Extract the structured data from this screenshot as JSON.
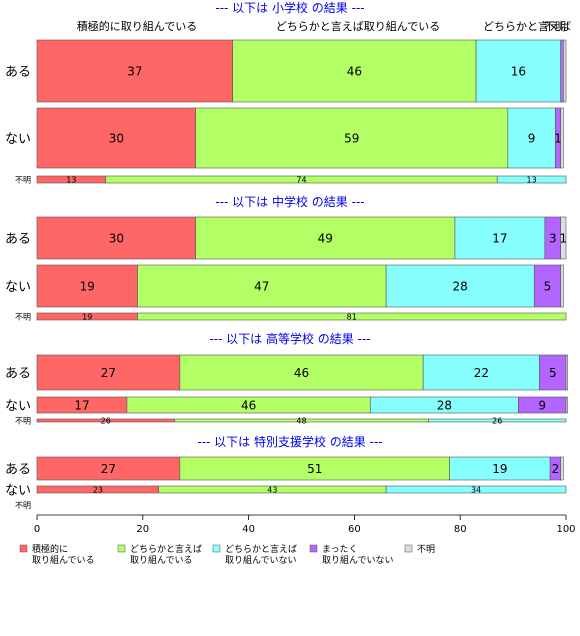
{
  "chart_data": {
    "type": "bar",
    "orientation": "horizontal",
    "stacked": true,
    "xlim": [
      0,
      100
    ],
    "xticks": [
      "0",
      "20",
      "40",
      "60",
      "80",
      "100"
    ],
    "grid": false,
    "legend_position": "bottom-left",
    "top_column_headers": [
      "積極的に取り組んでいる",
      "どちらかと言えば取り組んでいる",
      "どちらかと言えば",
      "不明"
    ],
    "legend": [
      {
        "lines": [
          "積極的に",
          "取り組んでいる"
        ],
        "color": "#FF6666"
      },
      {
        "lines": [
          "どちらかと言えば",
          "取り組んでいる"
        ],
        "color": "#B3FF66"
      },
      {
        "lines": [
          "どちらかと言えば",
          "取り組んでいない"
        ],
        "color": "#88FFFF"
      },
      {
        "lines": [
          "まったく",
          "取り組んでいない"
        ],
        "color": "#B366FF"
      },
      {
        "lines": [
          "不明"
        ],
        "color": "#DDDDDD"
      }
    ],
    "groups": [
      {
        "title": "--- 以下は 小学校 の結果 ---",
        "rows": [
          {
            "label": "ある",
            "values": [
              37,
              46,
              16,
              0.5,
              0.5
            ],
            "labels": [
              "37",
              "46",
              "16",
              "",
              ""
            ]
          },
          {
            "label": "ない",
            "values": [
              30,
              59,
              9,
              1,
              0.5
            ],
            "labels": [
              "30",
              "59",
              "9",
              "1",
              ""
            ]
          },
          {
            "label": "不明",
            "values": [
              13,
              74,
              13,
              0,
              0
            ],
            "labels": [
              "13",
              "74",
              "13",
              "",
              ""
            ]
          }
        ]
      },
      {
        "title": "--- 以下は 中学校 の結果 ---",
        "rows": [
          {
            "label": "ある",
            "values": [
              30,
              49,
              17,
              3,
              1
            ],
            "labels": [
              "30",
              "49",
              "17",
              "3",
              "1"
            ]
          },
          {
            "label": "ない",
            "values": [
              19,
              47,
              28,
              5,
              0.5
            ],
            "labels": [
              "19",
              "47",
              "28",
              "5",
              ""
            ]
          },
          {
            "label": "不明",
            "values": [
              19,
              81,
              0,
              0,
              0
            ],
            "labels": [
              "19",
              "81",
              "",
              "",
              ""
            ]
          }
        ]
      },
      {
        "title": "--- 以下は 高等学校 の結果 ---",
        "rows": [
          {
            "label": "ある",
            "values": [
              27,
              46,
              22,
              5,
              0.3
            ],
            "labels": [
              "27",
              "46",
              "22",
              "5",
              ""
            ]
          },
          {
            "label": "ない",
            "values": [
              17,
              46,
              28,
              9,
              0.3
            ],
            "labels": [
              "17",
              "46",
              "28",
              "9",
              ""
            ]
          },
          {
            "label": "不明",
            "values": [
              26,
              48,
              26,
              0,
              0
            ],
            "labels": [
              "26",
              "48",
              "26",
              "",
              ""
            ]
          }
        ]
      },
      {
        "title": "--- 以下は 特別支援学校 の結果 ---",
        "rows": [
          {
            "label": "ある",
            "values": [
              27,
              51,
              19,
              2,
              0.5
            ],
            "labels": [
              "27",
              "51",
              "19",
              "2",
              ""
            ]
          },
          {
            "label": "ない",
            "values": [
              23,
              43,
              34,
              0,
              0
            ],
            "labels": [
              "23",
              "43",
              "34",
              "",
              ""
            ]
          },
          {
            "label": "不明",
            "values": [],
            "labels": []
          }
        ]
      }
    ]
  }
}
